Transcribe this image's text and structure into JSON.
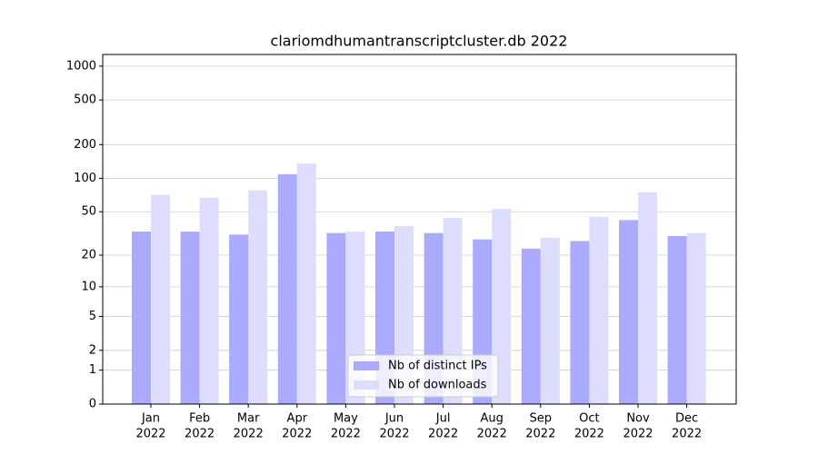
{
  "chart_data": {
    "type": "bar",
    "title": "clariomdhumantranscriptcluster.db 2022",
    "yscale": "log1p",
    "categories": [
      [
        "Jan",
        "2022"
      ],
      [
        "Feb",
        "2022"
      ],
      [
        "Mar",
        "2022"
      ],
      [
        "Apr",
        "2022"
      ],
      [
        "May",
        "2022"
      ],
      [
        "Jun",
        "2022"
      ],
      [
        "Jul",
        "2022"
      ],
      [
        "Aug",
        "2022"
      ],
      [
        "Sep",
        "2022"
      ],
      [
        "Oct",
        "2022"
      ],
      [
        "Nov",
        "2022"
      ],
      [
        "Dec",
        "2022"
      ]
    ],
    "series": [
      {
        "name": "Nb of distinct IPs",
        "color": "#aaaaff",
        "values": [
          33,
          33,
          31,
          109,
          32,
          33,
          32,
          28,
          23,
          27,
          42,
          30
        ]
      },
      {
        "name": "Nb of downloads",
        "color": "#ddddff",
        "values": [
          71,
          67,
          78,
          136,
          33,
          37,
          44,
          53,
          29,
          45,
          75,
          32
        ]
      }
    ],
    "ylim": [
      0,
      1270
    ],
    "yticks": [
      0,
      1,
      2,
      5,
      10,
      20,
      50,
      100,
      200,
      500,
      1000
    ],
    "grid": true,
    "legend": "lower center"
  }
}
